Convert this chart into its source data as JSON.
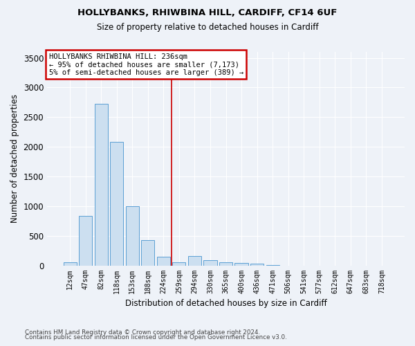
{
  "title1": "HOLLYBANKS, RHIWBINA HILL, CARDIFF, CF14 6UF",
  "title2": "Size of property relative to detached houses in Cardiff",
  "xlabel": "Distribution of detached houses by size in Cardiff",
  "ylabel": "Number of detached properties",
  "categories": [
    "12sqm",
    "47sqm",
    "82sqm",
    "118sqm",
    "153sqm",
    "188sqm",
    "224sqm",
    "259sqm",
    "294sqm",
    "330sqm",
    "365sqm",
    "400sqm",
    "436sqm",
    "471sqm",
    "506sqm",
    "541sqm",
    "577sqm",
    "612sqm",
    "647sqm",
    "683sqm",
    "718sqm"
  ],
  "values": [
    55,
    840,
    2720,
    2080,
    1000,
    430,
    150,
    50,
    160,
    90,
    55,
    45,
    30,
    10,
    0,
    0,
    0,
    0,
    0,
    0,
    0
  ],
  "bar_color": "#ccdff0",
  "bar_edge_color": "#5a9fd4",
  "vline_color": "#cc0000",
  "vline_pos": 6.5,
  "annotation_text": "HOLLYBANKS RHIWBINA HILL: 236sqm\n← 95% of detached houses are smaller (7,173)\n5% of semi-detached houses are larger (389) →",
  "annotation_box_color": "#cc0000",
  "ylim": [
    0,
    3600
  ],
  "yticks": [
    0,
    500,
    1000,
    1500,
    2000,
    2500,
    3000,
    3500
  ],
  "footer1": "Contains HM Land Registry data © Crown copyright and database right 2024.",
  "footer2": "Contains public sector information licensed under the Open Government Licence v3.0.",
  "bg_color": "#eef2f8",
  "grid_color": "#ffffff"
}
